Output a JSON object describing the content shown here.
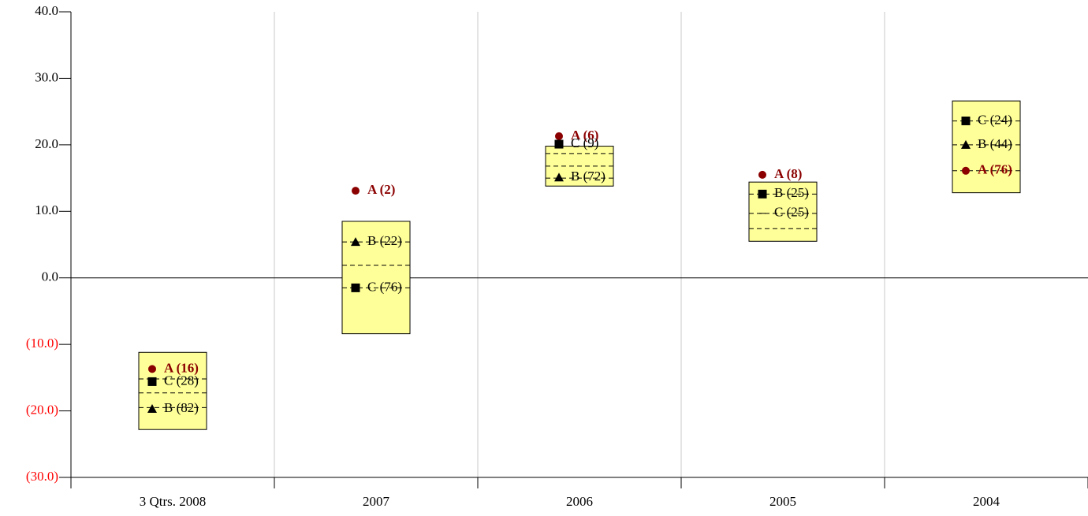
{
  "chart_data": {
    "type": "box",
    "categories": [
      "3 Qtrs. 2008",
      "2007",
      "2006",
      "2005",
      "2004"
    ],
    "ylim": [
      -30,
      40
    ],
    "yticks": [
      {
        "value": 40,
        "label": "40.0"
      },
      {
        "value": 30,
        "label": "30.0"
      },
      {
        "value": 20,
        "label": "20.0"
      },
      {
        "value": 10,
        "label": "10.0"
      },
      {
        "value": 0,
        "label": "0.0"
      },
      {
        "value": -10,
        "label": "(10.0)"
      },
      {
        "value": -20,
        "label": "(20.0)"
      },
      {
        "value": -30,
        "label": "(30.0)"
      }
    ],
    "negative_tick_color": "#ff0000",
    "grid": true,
    "box_color": "#ffff99",
    "box_low": [
      -22.8,
      -8.4,
      13.8,
      5.5,
      12.8
    ],
    "box_high": [
      -11.2,
      8.5,
      19.8,
      14.4,
      26.6
    ],
    "box_lines": [
      [
        -15.2,
        -17.3,
        -19.5
      ],
      [
        5.4,
        1.9,
        -1.5
      ],
      [
        18.7,
        16.8,
        15.0
      ],
      [
        12.6,
        9.7,
        7.4
      ],
      [
        23.6,
        20.0,
        16.1
      ]
    ],
    "series": [
      {
        "name": "A",
        "color": "#8b0000",
        "bold": true,
        "values": [
          -13.7,
          13.1,
          21.3,
          15.5,
          16.1
        ],
        "labels": [
          "A (16)",
          "A (2)",
          "A (6)",
          "A (8)",
          "A (76)"
        ],
        "markers": [
          "circle",
          "circle",
          "circle",
          "circle",
          "circle"
        ]
      },
      {
        "name": "B",
        "color": "#000000",
        "bold": false,
        "values": [
          -19.7,
          5.4,
          15.1,
          12.6,
          20.0
        ],
        "labels": [
          "B (82)",
          "B (22)",
          "B (72)",
          "B (25)",
          "B (44)"
        ],
        "markers": [
          "triangle",
          "triangle",
          "triangle",
          "square",
          "triangle"
        ]
      },
      {
        "name": "C",
        "color": "#000000",
        "bold": false,
        "values": [
          -15.6,
          -1.5,
          20.1,
          9.7,
          23.6
        ],
        "labels": [
          "C (28)",
          "C (76)",
          "C (9)",
          "C (25)",
          "C (24)"
        ],
        "markers": [
          "square",
          "square",
          "square",
          null,
          "square"
        ]
      }
    ]
  }
}
